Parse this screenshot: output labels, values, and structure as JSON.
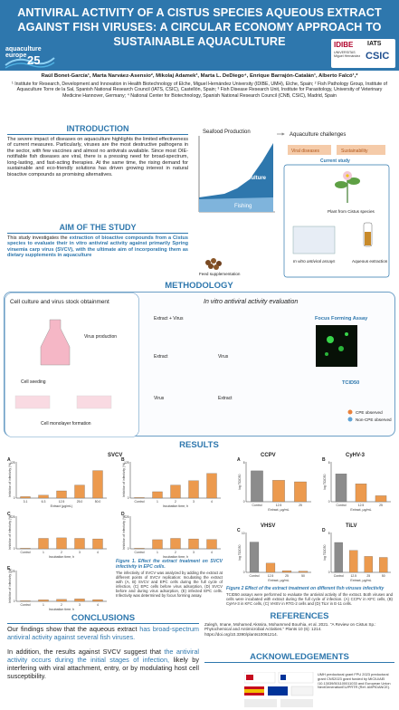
{
  "header": {
    "title": "ANTIVIRAL ACTIVITY OF A CISTUS SPECIES AQUEOUS EXTRACT AGAINST FISH VIRUSES: A CIRCULAR ECONOMY APPROACH TO SUSTAINABLE AQUACULTURE",
    "logo_left_text": "aquaculture europe",
    "logo_left_num": "25",
    "logo_idibe": "IDIBE",
    "logo_umh": "UNIVERSITAS Miguel Hernández",
    "logo_iats": "IATS",
    "logo_csic": "CSIC"
  },
  "authors": "Raúl Bonet-García¹, Marta Narváez-Asensio², Mikolaj Adamek³, Marta L. DeDiego⁴, Enrique Barrajón-Catalán¹, Alberto Falcó¹,*",
  "affiliations": "¹ Institute for Research, Development and Innovation in Health Biotechnology of Elche, Miguel Hernández University (IDIBE, UMH), Elche, Spain; ² Fish Pathology Group, Institute of Aquaculture Torre de la Sal, Spanish National Research Council (IATS, CSIC), Castellón, Spain; ³ Fish Disease Research Unit, Institute for Parasitology, University of Veterinary Medicine Hannover, Germany; ⁴ National Center for Biotechnology, Spanish National Research Council (CNB, CSIC), Madrid, Spain",
  "introduction": {
    "title": "INTRODUCTION",
    "text": "The severe impact of diseases on aquaculture highlights the limited effectiveness of current measures. Particularly, viruses are the most destructive pathogens in the sector, with few vaccines and almost no antivirals available. Since most OIE-notifiable fish diseases are viral, there is a pressing need for broad-spectrum, long-lasting, and fast-acting therapies. At the same time, the rising demand for sustainable and eco-friendly solutions has driven growing interest in natural bioactive compounds as promising alternatives."
  },
  "aim": {
    "title": "AIM OF THE STUDY",
    "text_1": "This study investigates the ",
    "hl_1": "extraction of bioactive compounds from a Cistus species to evaluate their in vitro antiviral activity against primarily Spring viraemia carp virus (SVCV), with the ultimate aim of incorporating them as dietary supplements in aquaculture",
    "text_2": ""
  },
  "diagram": {
    "seafood_label": "Seafood Production",
    "aquaculture_label": "Aquaculture",
    "fishing_label": "Fishing",
    "challenges_label": "Aquaculture challenges",
    "viral_label": "Viral diseases",
    "sust_label": "Sustainability",
    "current_label": "Current study",
    "plant_label": "Plant from Cistus species",
    "assay_label": "In vitro antiviral assays",
    "extract_label": "Aqueous extraction",
    "feed_label": "Feed supplementation"
  },
  "methodology": {
    "title": "METHODOLOGY",
    "left_title": "Cell culture and virus stock obtainment",
    "virus_prod": "Virus production",
    "cell_seeding": "Cell seeding",
    "monolayer": "Cell monolayer formation",
    "right_title": "In vitro antiviral activity evaluation",
    "row_a": "Extract + Virus",
    "row_b_1": "Extract",
    "row_b_2": "Virus",
    "row_c_1": "Virus",
    "row_c_2": "Extract",
    "ffa": "Focus Forming Assay",
    "tcid": "TCID50",
    "cpe_obs": "CPE observed",
    "non_cpe": "Non-CPE observed"
  },
  "results": {
    "title": "RESULTS",
    "svcv_title": "SVCV",
    "ccpv_title": "CCPV",
    "cyhv_title": "CyHV-3",
    "vhsv_title": "VHSV",
    "tilv_title": "TiLV",
    "legend_ug": "40 µg/ml",
    "fig1_title": "Figure 1. Effect the extract treatment on SVCV infectivity in EPC cells.",
    "fig1_text": "The infectivity of SVCV was analyzed by adding the extract at different points of SVCV replication: Incubating the extract with (A, B) SVCV and EPC cells during the full cycle of infection, (C) EPC cells before virus adsorption, (D) SVCV before and during virus adsorption, (E) infected EPC cells. Infectivity was determined by focus forming assay.",
    "fig2_title": "Figure 2 Effect of the extract treatment on different fish viruses infectivity",
    "fig2_text": "TCID50 assays were performed to evaluate the antiviral activity of the extract. Both viruses and cells were incubated with extract during the full cycle of infection. (A) CCPV in KFC cells, (B) CyHV-3 in KFC cells, (C) VHSV in RTG-2 cells and (D) TiLV in E-11 cells.",
    "axis_inhib": "Inhibition of infectivity (%)",
    "axis_log": "log TCID50",
    "axis_extract": "Extract (µg/mL)",
    "axis_time": "Incubation time, h"
  },
  "conclusions": {
    "title": "CONCLUSIONS",
    "p1_a": "Our findings show that the aqueous extract ",
    "p1_hl": "has broad-spectrum antiviral activity against several fish viruses.",
    "p2_a": "In addition, the results against SVCV suggest that ",
    "p2_hl": "the antiviral activity occurs during the initial stages of infection,",
    "p2_b": " likely by interfering with viral attachment, entry, or by modulating host cell susceptibility."
  },
  "references": {
    "title": "REFERENCES",
    "text": "Zalegh, Imane, Mohamed Akssira, Mohammed Bourhia, et al. 2021. \"A Review on Cistus Sp.: Phytochemical and Antimicrobial Activities.\" Plants 10 (6): 1214. https://doi.org/10.3390/plants10061214."
  },
  "acknowledgements": {
    "title": "ACKNOWLEDGEMENTS",
    "text": "UMH predoctoral grant FPU 2023 predoctoral grant CNS2023 grant funded by MICIU/AEI /10.13039/501100011033 and European Union NextGenerationEU/PRTR (Ref. AMPIDANCE)."
  },
  "chart_data": [
    {
      "type": "bar",
      "panel": "A",
      "virus": "SVCV",
      "xlabel": "Extract (µg/mL)",
      "ylabel": "Inhibition of infectivity (%)",
      "categories": [
        "3.1",
        "6.3",
        "12.5",
        "25.0",
        "50.0"
      ],
      "values": [
        5,
        10,
        25,
        45,
        95
      ],
      "ylim": [
        0,
        125
      ]
    },
    {
      "type": "bar",
      "panel": "B",
      "virus": "SVCV",
      "xlabel": "Incubation time, h",
      "ylabel": "Inhibition of infectivity (%)",
      "categories": [
        "Control",
        "1",
        "2",
        "3",
        "4"
      ],
      "values": [
        0,
        22,
        45,
        60,
        85
      ],
      "ylim": [
        0,
        125
      ]
    },
    {
      "type": "bar",
      "panel": "C",
      "virus": "SVCV",
      "xlabel": "Incubation time, h",
      "ylabel": "Inhibition of infectivity (%)",
      "categories": [
        "Control",
        "1",
        "2",
        "3",
        "4"
      ],
      "values": [
        0,
        40,
        42,
        40,
        38
      ],
      "ylim": [
        0,
        125
      ]
    },
    {
      "type": "bar",
      "panel": "D",
      "virus": "SVCV",
      "xlabel": "Incubation time, h",
      "ylabel": "Inhibition of infectivity (%)",
      "categories": [
        "Control",
        "1",
        "2",
        "3",
        "4"
      ],
      "values": [
        0,
        35,
        40,
        38,
        36
      ],
      "ylim": [
        0,
        125
      ]
    },
    {
      "type": "bar",
      "panel": "E",
      "virus": "SVCV",
      "xlabel": "Incubation time, h",
      "ylabel": "Inhibition of infectivity (%)",
      "categories": [
        "Control",
        "1",
        "2",
        "3",
        "4"
      ],
      "values": [
        0,
        6,
        8,
        10,
        7
      ],
      "ylim": [
        0,
        125
      ]
    },
    {
      "type": "bar",
      "panel": "A",
      "virus": "CCPV",
      "xlabel": "Extract, µg/mL",
      "ylabel": "log TCID50",
      "categories": [
        "Control",
        "12.5",
        "25"
      ],
      "values": [
        6.2,
        4.3,
        4.0
      ],
      "ylim": [
        0,
        8
      ]
    },
    {
      "type": "bar",
      "panel": "B",
      "virus": "CyHV-3",
      "xlabel": "Extract, µg/mL",
      "ylabel": "log TCID50",
      "categories": [
        "Control",
        "12.5",
        "25"
      ],
      "values": [
        5.6,
        3.6,
        1.2
      ],
      "ylim": [
        0,
        8
      ]
    },
    {
      "type": "bar",
      "panel": "C",
      "virus": "VHSV",
      "xlabel": "Extract, µg/mL",
      "ylabel": "log TCID50",
      "categories": [
        "Control",
        "12.5",
        "25",
        "50"
      ],
      "values": [
        7.6,
        2.3,
        0.4,
        0.3
      ],
      "ylim": [
        0,
        10
      ]
    },
    {
      "type": "bar",
      "panel": "D",
      "virus": "TiLV",
      "xlabel": "Extract, µg/mL",
      "ylabel": "log TCID50",
      "categories": [
        "Control",
        "12.5",
        "25",
        "50"
      ],
      "values": [
        6.0,
        4.4,
        3.2,
        3.0
      ],
      "ylim": [
        0,
        8
      ]
    }
  ],
  "colors": {
    "primary": "#2e77ad",
    "bar_orange": "#ec9a4e",
    "bar_grey": "#8c8c8c",
    "accent_orange": "#e9813c"
  }
}
